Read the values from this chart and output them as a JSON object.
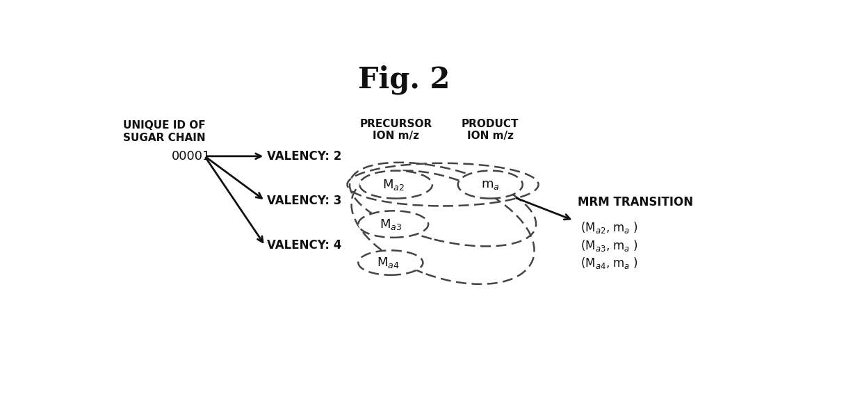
{
  "title": "Fig. 2",
  "unique_id_label": "UNIQUE ID OF\nSUGAR CHAIN",
  "unique_id_value": "00001",
  "valency_labels": [
    "VALENCY: 2",
    "VALENCY: 3",
    "VALENCY: 4"
  ],
  "precursor_header": "PRECURSOR\nION m/z",
  "product_header": "PRODUCT\nION m/z",
  "mrm_label": "MRM TRANSITION",
  "ma_display": [
    "M$_{a2}$",
    "M$_{a3}$",
    "M$_{a4}$"
  ],
  "fa_display": "m$_{a}$",
  "mrm_display": [
    "(M$_{a2}$, m$_{a}$ )",
    "(M$_{a3}$, m$_{a}$ )",
    "(M$_{a4}$, m$_{a}$ )"
  ],
  "arrow_color": "#111111",
  "ellipse_color": "#444444",
  "text_color": "#111111",
  "small_ellipse_Ma2": [
    5.35,
    3.52,
    1.35,
    0.52
  ],
  "small_ellipse_Ma3": [
    5.3,
    2.78,
    1.3,
    0.5
  ],
  "small_ellipse_Ma4": [
    5.25,
    2.06,
    1.2,
    0.46
  ],
  "small_ellipse_fa": [
    7.1,
    3.52,
    1.2,
    0.52
  ],
  "big_ellipse_1": [
    6.22,
    3.52,
    3.55,
    0.8,
    0
  ],
  "big_ellipse_2": [
    6.22,
    3.15,
    3.55,
    1.35,
    -14
  ],
  "big_ellipse_3": [
    6.22,
    2.72,
    3.55,
    1.85,
    -20
  ]
}
